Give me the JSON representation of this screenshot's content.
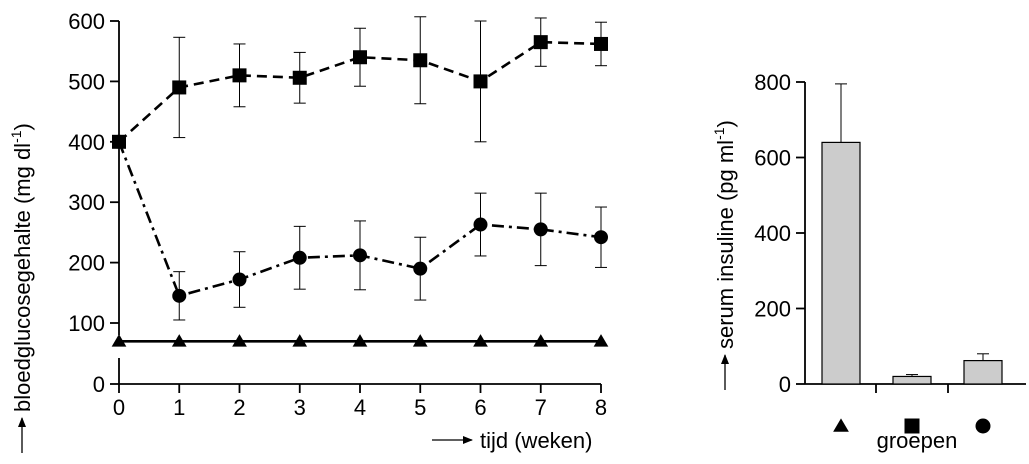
{
  "chart_data": [
    {
      "type": "line",
      "title": "",
      "ylabel": "bloedglucosegehalte (mg dl",
      "ylabel_sup": "-1",
      "ylabel_close": ")",
      "xlabel": "tijd (weken)",
      "x": [
        0,
        1,
        2,
        3,
        4,
        5,
        6,
        7,
        8
      ],
      "xticks": [
        "0",
        "1",
        "2",
        "3",
        "4",
        "5",
        "6",
        "7",
        "8"
      ],
      "yticks_values": [
        0,
        100,
        200,
        300,
        400,
        500,
        600
      ],
      "yticks": [
        "0",
        "100",
        "200",
        "300",
        "400",
        "500",
        "600"
      ],
      "xlim": [
        0,
        8
      ],
      "ylim": [
        0,
        600
      ],
      "axis_break": "y between 0 and 100",
      "grid": false,
      "series": [
        {
          "marker": "square",
          "line": "dashed",
          "color": "#000000",
          "values": [
            400,
            490,
            510,
            506,
            540,
            535,
            500,
            565,
            562
          ],
          "errors": [
            0,
            83,
            52,
            42,
            48,
            72,
            100,
            40,
            36
          ]
        },
        {
          "marker": "circle",
          "line": "dash-dot",
          "color": "#000000",
          "values": [
            400,
            145,
            172,
            208,
            212,
            190,
            263,
            255,
            242
          ],
          "errors": [
            0,
            40,
            46,
            52,
            57,
            52,
            52,
            60,
            50
          ]
        },
        {
          "marker": "triangle",
          "line": "solid",
          "color": "#000000",
          "values": [
            70,
            70,
            70,
            70,
            70,
            70,
            70,
            70,
            70
          ],
          "errors": [
            0,
            0,
            0,
            0,
            0,
            0,
            0,
            0,
            0
          ]
        }
      ]
    },
    {
      "type": "bar",
      "title": "",
      "ylabel": "serum insuline (pg ml",
      "ylabel_sup": "-1",
      "ylabel_close": ")",
      "xlabel": "groepen",
      "categories": [
        "triangle",
        "square",
        "circle"
      ],
      "values": [
        640,
        20,
        62
      ],
      "errors": [
        155,
        5,
        18
      ],
      "bar_color": "#cccccc",
      "yticks_values": [
        0,
        200,
        400,
        600,
        800
      ],
      "yticks": [
        "0",
        "200",
        "400",
        "600",
        "800"
      ],
      "ylim": [
        0,
        800
      ],
      "grid": false
    }
  ]
}
